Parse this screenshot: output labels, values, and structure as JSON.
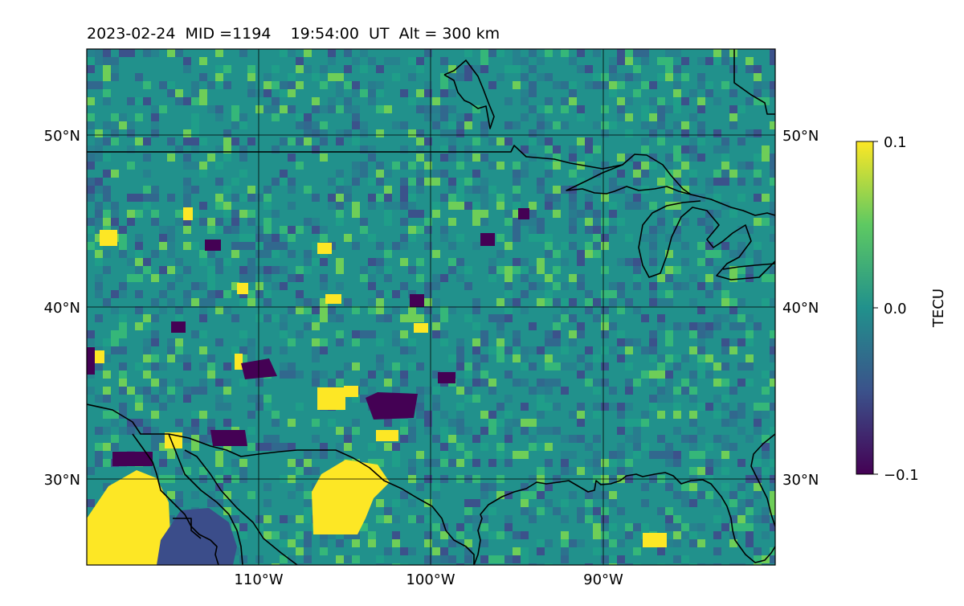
{
  "title": "2023-02-24  MID =1194    19:54:00  UT  Alt = 300 km",
  "map": {
    "lat_labels": [
      "50°N",
      "40°N",
      "30°N"
    ],
    "lon_labels": [
      "110°W",
      "100°W",
      "90°W"
    ],
    "colors": {
      "background": "#21918c",
      "high": "#fde725",
      "low": "#440154",
      "coast": "#000000"
    }
  },
  "colorbar": {
    "label": "TECU",
    "ticks": [
      "0.1",
      "0.0",
      "−0.1"
    ],
    "stops": [
      "#440154",
      "#3b528b",
      "#21918c",
      "#5ec962",
      "#fde725"
    ]
  }
}
